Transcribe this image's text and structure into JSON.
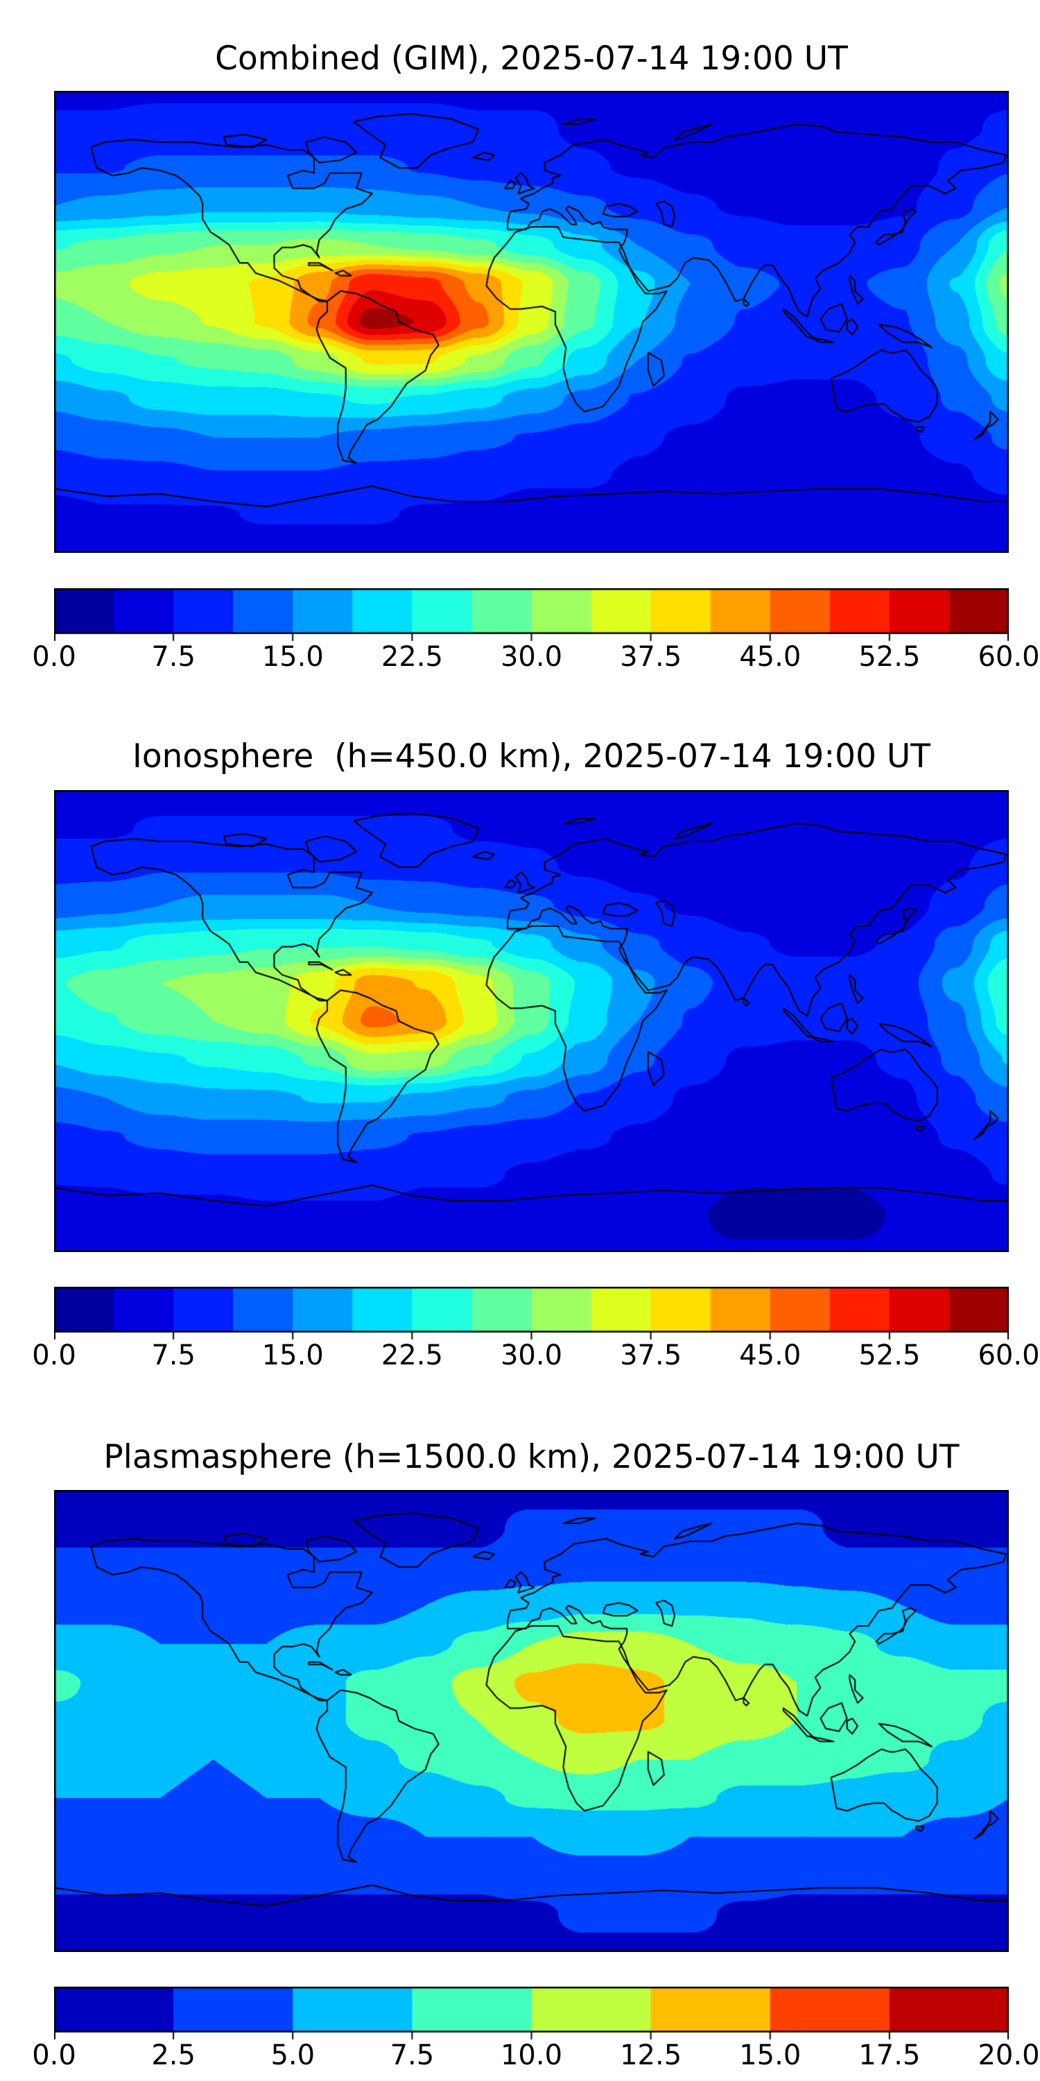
{
  "figure": {
    "background": "#ffffff",
    "coastline_color": "#000000"
  },
  "chart_data": [
    {
      "type": "heatmap",
      "title": "Combined (GIM), 2025-07-14 19:00 UT",
      "colormap": "jet",
      "projection_extent": [
        -180,
        180,
        -90,
        90
      ],
      "vmin": 0,
      "vmax": 60,
      "n_levels": 16,
      "colorbar_ticks": [
        "0.0",
        "7.5",
        "15.0",
        "22.5",
        "30.0",
        "37.5",
        "45.0",
        "52.5",
        "60.0"
      ],
      "lon": [
        -180,
        -160,
        -140,
        -120,
        -100,
        -80,
        -60,
        -40,
        -20,
        0,
        20,
        40,
        60,
        80,
        100,
        120,
        140,
        160,
        180
      ],
      "lat": [
        90,
        75,
        60,
        45,
        30,
        15,
        0,
        -15,
        -30,
        -45,
        -60,
        -75,
        -90
      ],
      "values": [
        [
          7,
          7,
          7,
          7,
          7,
          7,
          7,
          7,
          7,
          7,
          7,
          7,
          7,
          7,
          7,
          7,
          7,
          7,
          7
        ],
        [
          8,
          8,
          9,
          9,
          9,
          9,
          9,
          9,
          8,
          8,
          7,
          6,
          6,
          5,
          5,
          6,
          6,
          7,
          8
        ],
        [
          11,
          11,
          12,
          12,
          12,
          12,
          12,
          11,
          10,
          9,
          8,
          7,
          6,
          5,
          5,
          5,
          6,
          8,
          11
        ],
        [
          15,
          16,
          17,
          18,
          18,
          18,
          17,
          16,
          15,
          14,
          12,
          10,
          8,
          7,
          6,
          6,
          7,
          10,
          15
        ],
        [
          26,
          27,
          29,
          30,
          30,
          31,
          30,
          29,
          27,
          24,
          20,
          15,
          12,
          10,
          9,
          9,
          10,
          15,
          26
        ],
        [
          31,
          33,
          35,
          36,
          38,
          44,
          52,
          50,
          44,
          37,
          28,
          20,
          15,
          12,
          11,
          11,
          12,
          19,
          31
        ],
        [
          28,
          30,
          32,
          34,
          38,
          46,
          58,
          56,
          46,
          36,
          27,
          19,
          14,
          11,
          10,
          10,
          11,
          17,
          28
        ],
        [
          22,
          24,
          26,
          27,
          28,
          32,
          38,
          38,
          33,
          27,
          21,
          15,
          11,
          9,
          8,
          8,
          9,
          14,
          22
        ],
        [
          16,
          18,
          20,
          21,
          21,
          22,
          23,
          22,
          20,
          17,
          14,
          11,
          9,
          7,
          7,
          7,
          8,
          12,
          16
        ],
        [
          12,
          13,
          14,
          15,
          15,
          15,
          14,
          13,
          12,
          11,
          10,
          8,
          7,
          6,
          6,
          6,
          7,
          9,
          12
        ],
        [
          9,
          10,
          10,
          11,
          11,
          11,
          10,
          10,
          9,
          8,
          8,
          7,
          6,
          5,
          5,
          5,
          6,
          7,
          9
        ],
        [
          6,
          7,
          7,
          7,
          8,
          8,
          8,
          7,
          7,
          6,
          6,
          5,
          5,
          4,
          4,
          4,
          5,
          5,
          6
        ],
        [
          5,
          5,
          5,
          5,
          5,
          5,
          5,
          5,
          5,
          5,
          5,
          5,
          5,
          5,
          5,
          5,
          5,
          5,
          5
        ]
      ]
    },
    {
      "type": "heatmap",
      "title": "Ionosphere  (h=450.0 km), 2025-07-14 19:00 UT",
      "colormap": "jet",
      "projection_extent": [
        -180,
        180,
        -90,
        90
      ],
      "vmin": 0,
      "vmax": 60,
      "n_levels": 16,
      "colorbar_ticks": [
        "0.0",
        "7.5",
        "15.0",
        "22.5",
        "30.0",
        "37.5",
        "45.0",
        "52.5",
        "60.0"
      ],
      "lon": [
        -180,
        -160,
        -140,
        -120,
        -100,
        -80,
        -60,
        -40,
        -20,
        0,
        20,
        40,
        60,
        80,
        100,
        120,
        140,
        160,
        180
      ],
      "lat": [
        90,
        75,
        60,
        45,
        30,
        15,
        0,
        -15,
        -30,
        -45,
        -60,
        -75,
        -90
      ],
      "values": [
        [
          6,
          6,
          6,
          6,
          6,
          6,
          6,
          6,
          6,
          6,
          6,
          6,
          6,
          6,
          6,
          6,
          6,
          6,
          6
        ],
        [
          7,
          7,
          8,
          8,
          8,
          8,
          8,
          8,
          7,
          7,
          6,
          5,
          5,
          4,
          4,
          5,
          5,
          6,
          7
        ],
        [
          10,
          10,
          11,
          11,
          11,
          11,
          10,
          10,
          9,
          8,
          7,
          6,
          5,
          4,
          4,
          4,
          5,
          7,
          10
        ],
        [
          13,
          14,
          15,
          16,
          16,
          16,
          15,
          14,
          13,
          12,
          10,
          8,
          7,
          6,
          5,
          5,
          6,
          9,
          13
        ],
        [
          21,
          22,
          24,
          25,
          26,
          26,
          26,
          25,
          23,
          20,
          16,
          12,
          10,
          8,
          7,
          7,
          8,
          13,
          21
        ],
        [
          26,
          28,
          30,
          31,
          32,
          36,
          43,
          41,
          35,
          28,
          22,
          16,
          12,
          10,
          9,
          9,
          10,
          16,
          26
        ],
        [
          24,
          26,
          28,
          30,
          32,
          38,
          46,
          44,
          36,
          28,
          21,
          15,
          11,
          9,
          8,
          8,
          9,
          14,
          24
        ],
        [
          19,
          21,
          22,
          23,
          24,
          27,
          33,
          32,
          27,
          22,
          17,
          12,
          9,
          7,
          7,
          7,
          8,
          12,
          19
        ],
        [
          14,
          15,
          17,
          18,
          18,
          19,
          19,
          18,
          16,
          14,
          11,
          9,
          7,
          6,
          6,
          6,
          7,
          10,
          14
        ],
        [
          10,
          11,
          12,
          13,
          13,
          13,
          12,
          11,
          10,
          9,
          8,
          7,
          6,
          5,
          5,
          5,
          6,
          8,
          10
        ],
        [
          8,
          8,
          9,
          9,
          9,
          9,
          9,
          8,
          8,
          7,
          6,
          6,
          5,
          4,
          4,
          4,
          5,
          6,
          8
        ],
        [
          5,
          6,
          6,
          6,
          7,
          7,
          7,
          6,
          6,
          5,
          5,
          4,
          4,
          3,
          3,
          3,
          4,
          4,
          5
        ],
        [
          4,
          4,
          4,
          4,
          4,
          4,
          4,
          4,
          4,
          4,
          4,
          4,
          4,
          4,
          4,
          4,
          4,
          4,
          4
        ]
      ]
    },
    {
      "type": "heatmap",
      "title": "Plasmasphere (h=1500.0 km), 2025-07-14 19:00 UT",
      "colormap": "jet",
      "projection_extent": [
        -180,
        180,
        -90,
        90
      ],
      "vmin": 0,
      "vmax": 20,
      "n_levels": 8,
      "colorbar_ticks": [
        "0.0",
        "2.5",
        "5.0",
        "7.5",
        "10.0",
        "12.5",
        "15.0",
        "17.5",
        "20.0"
      ],
      "lon": [
        -180,
        -160,
        -140,
        -120,
        -100,
        -80,
        -60,
        -40,
        -20,
        0,
        20,
        40,
        60,
        80,
        100,
        120,
        140,
        160,
        180
      ],
      "lat": [
        90,
        75,
        60,
        45,
        30,
        15,
        0,
        -15,
        -30,
        -45,
        -60,
        -75,
        -90
      ],
      "values": [
        [
          2,
          2,
          2,
          2,
          2,
          2,
          2,
          2,
          2,
          2,
          2,
          2,
          2,
          2,
          2,
          2,
          2,
          2,
          2
        ],
        [
          2,
          2,
          2,
          2,
          2,
          2,
          2,
          2,
          2,
          3,
          3,
          3,
          3,
          3,
          3,
          2,
          2,
          2,
          2
        ],
        [
          3,
          3,
          3,
          3,
          3,
          3,
          3,
          3,
          3,
          4,
          4,
          4,
          4,
          4,
          4,
          3,
          3,
          3,
          3
        ],
        [
          4,
          4,
          4,
          4,
          4,
          4,
          4,
          5,
          6,
          6,
          7,
          7,
          7,
          7,
          6,
          6,
          5,
          4,
          4
        ],
        [
          6,
          6,
          5,
          5,
          5,
          6,
          6,
          7,
          8,
          10,
          11,
          11,
          10,
          9,
          9,
          8,
          7,
          6,
          6
        ],
        [
          8,
          7,
          6,
          6,
          6,
          7,
          8,
          9,
          11,
          13,
          14,
          13,
          12,
          11,
          10,
          9,
          9,
          8,
          8
        ],
        [
          7,
          7,
          6,
          6,
          6,
          7,
          8,
          9,
          10,
          12,
          13,
          13,
          12,
          11,
          10,
          9,
          8,
          8,
          7
        ],
        [
          6,
          6,
          6,
          5,
          6,
          6,
          7,
          8,
          9,
          10,
          11,
          10,
          10,
          9,
          9,
          8,
          8,
          7,
          6
        ],
        [
          5,
          5,
          5,
          4,
          5,
          5,
          6,
          6,
          7,
          8,
          8,
          8,
          8,
          7,
          7,
          7,
          6,
          6,
          5
        ],
        [
          4,
          4,
          4,
          3,
          4,
          4,
          4,
          5,
          5,
          5,
          6,
          6,
          5,
          5,
          5,
          5,
          5,
          4,
          4
        ],
        [
          3,
          3,
          3,
          3,
          3,
          3,
          3,
          3,
          3,
          4,
          4,
          4,
          4,
          4,
          3,
          3,
          3,
          3,
          3
        ],
        [
          2,
          2,
          2,
          2,
          2,
          2,
          2,
          2,
          2,
          2,
          3,
          3,
          3,
          2,
          2,
          2,
          2,
          2,
          2
        ],
        [
          2,
          2,
          2,
          2,
          2,
          2,
          2,
          2,
          2,
          2,
          2,
          2,
          2,
          2,
          2,
          2,
          2,
          2,
          2
        ]
      ]
    }
  ]
}
